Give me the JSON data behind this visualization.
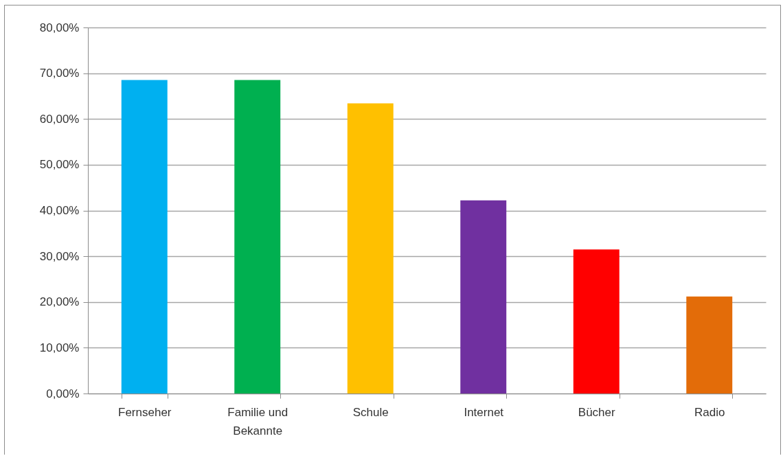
{
  "chart_data": {
    "type": "bar",
    "categories": [
      "Fernseher",
      "Familie und Bekannte",
      "Schule",
      "Internet",
      "Bücher",
      "Radio"
    ],
    "values": [
      68.5,
      68.5,
      63.4,
      42.2,
      31.5,
      21.2
    ],
    "colors": [
      "#00b0f0",
      "#00b050",
      "#ffc000",
      "#7030a0",
      "#ff0000",
      "#e36c09"
    ],
    "ylim": [
      0,
      80
    ],
    "yticks": [
      {
        "value": 0,
        "label": "0,00%"
      },
      {
        "value": 10,
        "label": "10,00%"
      },
      {
        "value": 20,
        "label": "20,00%"
      },
      {
        "value": 30,
        "label": "30,00%"
      },
      {
        "value": 40,
        "label": "40,00%"
      },
      {
        "value": 50,
        "label": "50,00%"
      },
      {
        "value": 60,
        "label": "60,00%"
      },
      {
        "value": 70,
        "label": "70,00%"
      },
      {
        "value": 80,
        "label": "80,00%"
      }
    ],
    "grid": "y"
  }
}
